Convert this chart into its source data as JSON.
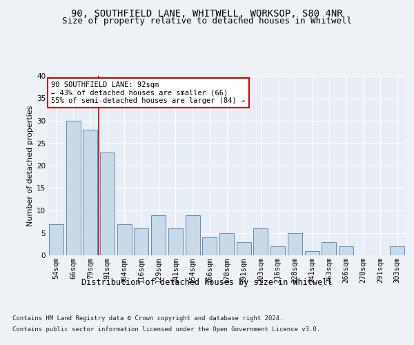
{
  "title1": "90, SOUTHFIELD LANE, WHITWELL, WORKSOP, S80 4NR",
  "title2": "Size of property relative to detached houses in Whitwell",
  "xlabel": "Distribution of detached houses by size in Whitwell",
  "ylabel": "Number of detached properties",
  "categories": [
    "54sqm",
    "66sqm",
    "79sqm",
    "91sqm",
    "104sqm",
    "116sqm",
    "129sqm",
    "141sqm",
    "154sqm",
    "166sqm",
    "178sqm",
    "191sqm",
    "203sqm",
    "216sqm",
    "228sqm",
    "241sqm",
    "253sqm",
    "266sqm",
    "278sqm",
    "291sqm",
    "303sqm"
  ],
  "values": [
    7,
    30,
    28,
    23,
    7,
    6,
    9,
    6,
    9,
    4,
    5,
    3,
    6,
    2,
    5,
    1,
    3,
    2,
    0,
    0,
    2
  ],
  "bar_color": "#c9d9e8",
  "bar_edge_color": "#5b8db8",
  "annotation_line_color": "#cc0000",
  "annotation_box_edge_color": "#cc0000",
  "annotation_text_line1": "90 SOUTHFIELD LANE: 92sqm",
  "annotation_text_line2": "← 43% of detached houses are smaller (66)",
  "annotation_text_line3": "55% of semi-detached houses are larger (84) →",
  "ylim": [
    0,
    40
  ],
  "yticks": [
    0,
    5,
    10,
    15,
    20,
    25,
    30,
    35,
    40
  ],
  "footer1": "Contains HM Land Registry data © Crown copyright and database right 2024.",
  "footer2": "Contains public sector information licensed under the Open Government Licence v3.0.",
  "bg_color": "#eef2f7",
  "plot_bg_color": "#e8eef5",
  "grid_color": "#ffffff",
  "title1_fontsize": 10,
  "title2_fontsize": 9,
  "tick_fontsize": 7.5,
  "ylabel_fontsize": 8,
  "xlabel_fontsize": 8.5,
  "annotation_fontsize": 7.5,
  "footer_fontsize": 6.5
}
